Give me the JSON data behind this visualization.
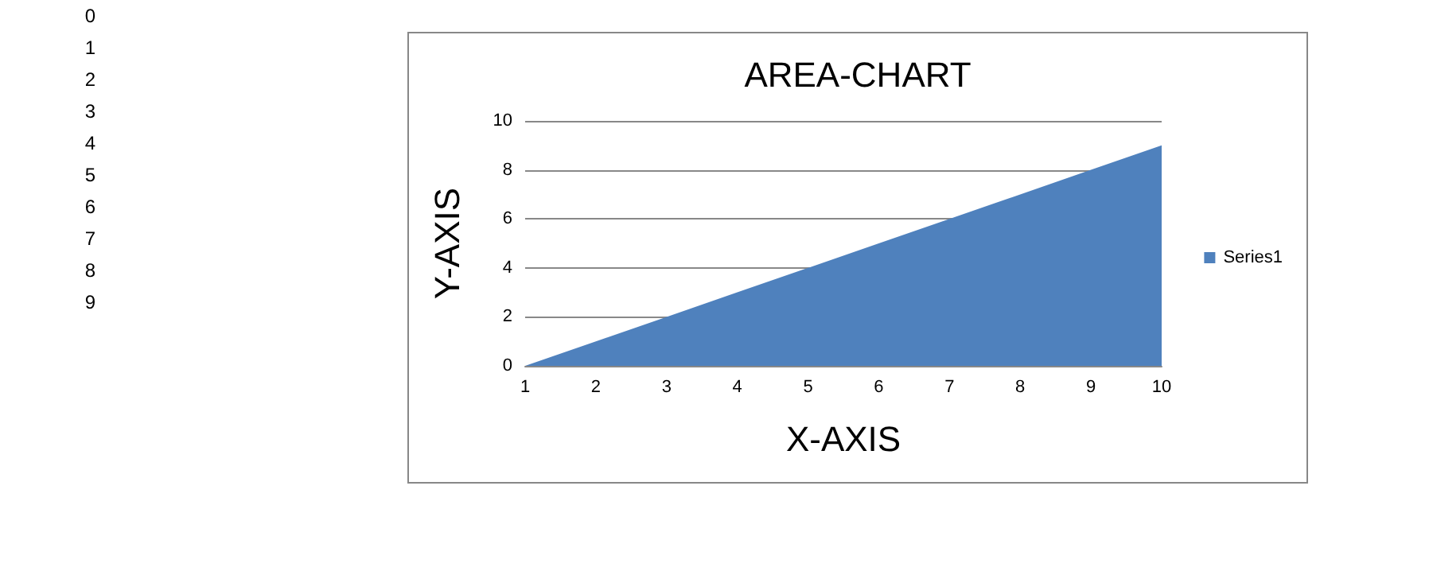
{
  "chart_data": {
    "type": "area",
    "title": "AREA-CHART",
    "xlabel": "X-AXIS",
    "ylabel": "Y-AXIS",
    "categories": [
      "1",
      "2",
      "3",
      "4",
      "5",
      "6",
      "7",
      "8",
      "9",
      "10"
    ],
    "series": [
      {
        "name": "Series1",
        "color": "#4f81bd",
        "values": [
          0,
          1,
          2,
          3,
          4,
          5,
          6,
          7,
          8,
          9
        ]
      }
    ],
    "ylim": [
      0,
      10
    ],
    "yticks": [
      0,
      2,
      4,
      6,
      8,
      10
    ],
    "grid": "y",
    "legend": "right",
    "marker": "none",
    "annotations": [
      "0",
      "1",
      "2",
      "3",
      "4",
      "5",
      "6",
      "7",
      "8",
      "9"
    ]
  }
}
